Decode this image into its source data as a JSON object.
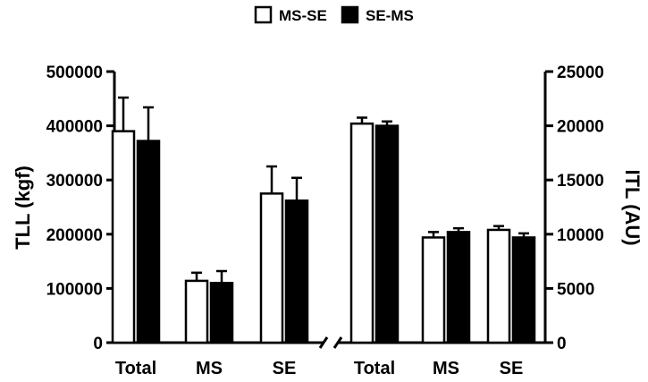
{
  "chart_data": {
    "type": "bar",
    "legend": {
      "placement": "top-center",
      "entries": [
        {
          "label": "MS-SE",
          "fill": "#ffffff",
          "stroke": "#000000"
        },
        {
          "label": "SE-MS",
          "fill": "#000000",
          "stroke": "#000000"
        }
      ]
    },
    "left_panel": {
      "axis_side": "left",
      "ylabel": "TLL (kgf)",
      "ylim": [
        0,
        500000
      ],
      "ticks": [
        0,
        100000,
        200000,
        300000,
        400000,
        500000
      ],
      "tick_labels": [
        "0",
        "100000",
        "200000",
        "300000",
        "400000",
        "500000"
      ],
      "categories": [
        "Total",
        "MS",
        "SE"
      ],
      "series": [
        {
          "name": "MS-SE",
          "values": [
            390000,
            114000,
            275000
          ],
          "errors": [
            62000,
            15000,
            50000
          ]
        },
        {
          "name": "SE-MS",
          "values": [
            372000,
            110000,
            262000
          ],
          "errors": [
            62000,
            22000,
            42000
          ]
        }
      ]
    },
    "right_panel": {
      "axis_side": "right",
      "ylabel": "ITL (AU)",
      "ylim": [
        0,
        25000
      ],
      "ticks": [
        0,
        5000,
        10000,
        15000,
        20000,
        25000
      ],
      "tick_labels": [
        "0",
        "5000",
        "10000",
        "15000",
        "20000",
        "25000"
      ],
      "categories": [
        "Total",
        "MS",
        "SE"
      ],
      "series": [
        {
          "name": "MS-SE",
          "values": [
            20200,
            9700,
            10400
          ],
          "errors": [
            550,
            500,
            350
          ]
        },
        {
          "name": "SE-MS",
          "values": [
            20000,
            10200,
            9700
          ],
          "errors": [
            400,
            350,
            380
          ]
        }
      ]
    },
    "axis_break": true,
    "grid": false
  }
}
